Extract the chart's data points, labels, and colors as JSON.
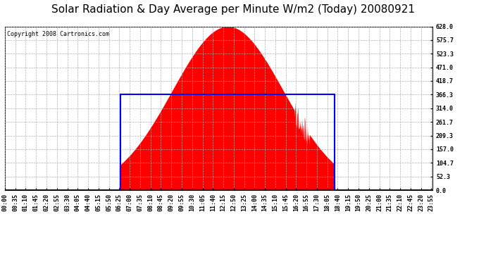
{
  "title": "Solar Radiation & Day Average per Minute W/m2 (Today) 20080921",
  "copyright": "Copyright 2008 Cartronics.com",
  "y_ticks": [
    0.0,
    52.3,
    104.7,
    157.0,
    209.3,
    261.7,
    314.0,
    366.3,
    418.7,
    471.0,
    523.3,
    575.7,
    628.0
  ],
  "ymax": 628.0,
  "ymin": 0.0,
  "fill_color": "#FF0000",
  "line_color": "#0000FF",
  "bg_color": "#FFFFFF",
  "plot_bg_color": "#FFFFFF",
  "grid_color": "#AAAAAA",
  "title_fontsize": 11,
  "copyright_fontsize": 6,
  "tick_fontsize": 6,
  "sunrise_min": 390,
  "sunset_min": 1110,
  "peak_value": 628.0,
  "day_avg": 366.3,
  "total_minutes": 1440
}
